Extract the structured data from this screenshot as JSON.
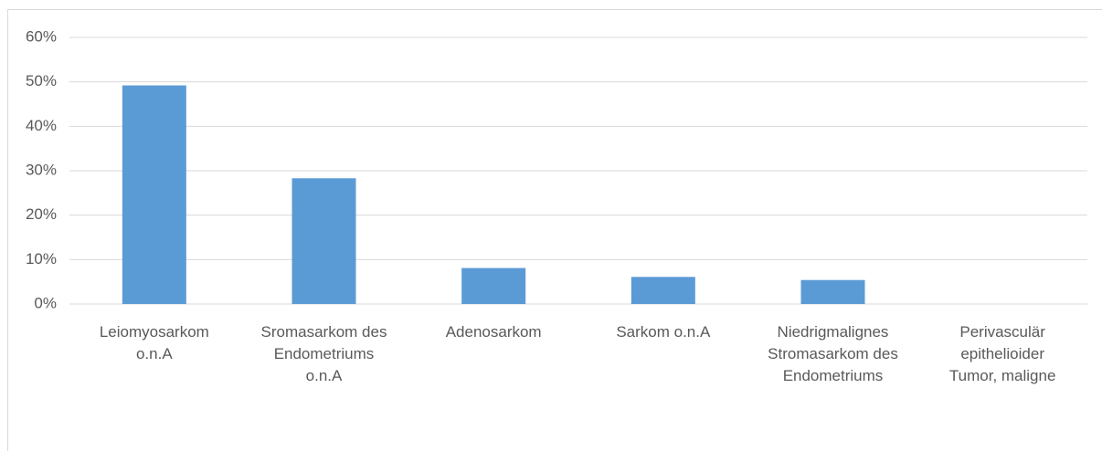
{
  "chart_data": {
    "type": "bar",
    "categories": [
      "Leiomyosarkom\no.n.A",
      "Sromasarkom des\nEndometriums\no.n.A",
      "Adenosarkom",
      "Sarkom o.n.A",
      "Niedrigmalignes\nStromasarkom des\nEndometriums",
      "Perivasculär\nepithelioider\nTumor, maligne"
    ],
    "values": [
      49.2,
      28.3,
      8.1,
      6.1,
      5.4,
      0
    ],
    "color": "#5b9bd5",
    "ylim": [
      0,
      60
    ],
    "yticks": [
      {
        "value": 0,
        "label": "0%"
      },
      {
        "value": 10,
        "label": "10%"
      },
      {
        "value": 20,
        "label": "20%"
      },
      {
        "value": 30,
        "label": "30%"
      },
      {
        "value": 40,
        "label": "40%"
      },
      {
        "value": 50,
        "label": "50%"
      },
      {
        "value": 60,
        "label": "60%"
      }
    ],
    "grid": true
  }
}
